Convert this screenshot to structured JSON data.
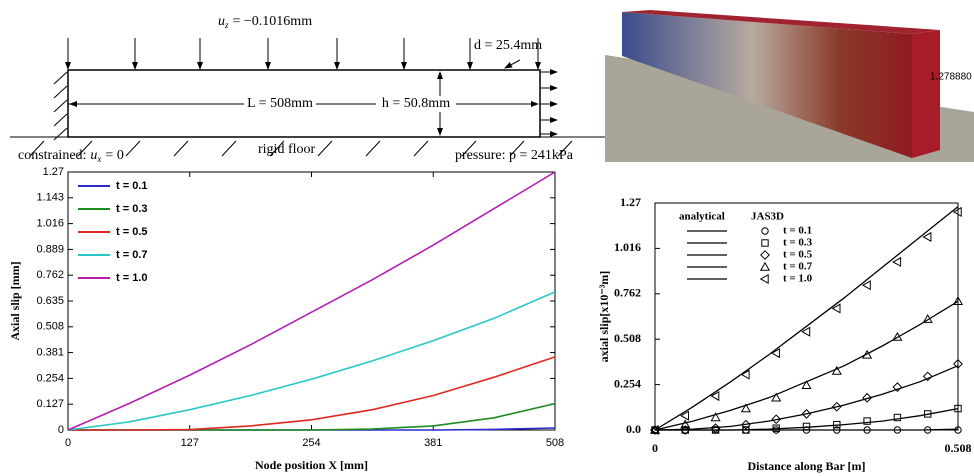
{
  "diagram": {
    "load": {
      "symbol": "u",
      "subscript": "z",
      "text": "= −0.1016mm"
    },
    "depth": "d = 25.4mm",
    "length": "L = 508mm",
    "height": "h = 50.8mm",
    "constraint": {
      "text": "constrained:",
      "symbol": "u",
      "subscript": "x",
      "rest": "= 0"
    },
    "floor": "rigid floor",
    "pressure": "pressure: p = 241kPa"
  },
  "render": {
    "label": "1.278880"
  },
  "chart_data": [
    {
      "type": "line",
      "x_label": "Node position X [mm]",
      "y_label": "Axial slip [mm]",
      "x": [
        0,
        63.5,
        127,
        190.5,
        254,
        317.5,
        381,
        444.5,
        508
      ],
      "xlim": [
        0,
        508
      ],
      "xticks": [
        0,
        127,
        254,
        381,
        508
      ],
      "ylim": [
        0,
        1.27
      ],
      "yticks": [
        0,
        0.127,
        0.254,
        0.381,
        0.508,
        0.635,
        0.762,
        0.889,
        1.016,
        1.143,
        1.27
      ],
      "legend": "upper left",
      "series": [
        {
          "name": "t = 0.1",
          "color": "#2b2bd0",
          "values": [
            0,
            0,
            0,
            0,
            0,
            0,
            0,
            0.003,
            0.01
          ]
        },
        {
          "name": "t = 0.3",
          "color": "#1e8c1e",
          "values": [
            0,
            0,
            0,
            0,
            0,
            0.005,
            0.02,
            0.06,
            0.13
          ]
        },
        {
          "name": "t = 0.5",
          "color": "#e0281e",
          "values": [
            0,
            0,
            0.002,
            0.02,
            0.05,
            0.1,
            0.17,
            0.26,
            0.36
          ]
        },
        {
          "name": "t = 0.7",
          "color": "#28c8c8",
          "values": [
            0,
            0.04,
            0.1,
            0.17,
            0.25,
            0.34,
            0.44,
            0.55,
            0.68
          ]
        },
        {
          "name": "t = 1.0",
          "color": "#b41eb4",
          "values": [
            0,
            0.13,
            0.27,
            0.42,
            0.58,
            0.74,
            0.91,
            1.09,
            1.27
          ]
        }
      ]
    },
    {
      "type": "line",
      "x_label": "Distance along Bar [m]",
      "y_label": "axial slip[x10⁻³m]",
      "legend_headers": [
        "analytical",
        "JAS3D"
      ],
      "x": [
        0,
        0.0635,
        0.127,
        0.1905,
        0.254,
        0.3175,
        0.381,
        0.4445,
        0.508
      ],
      "jas3d_x": [
        0,
        0.0508,
        0.1016,
        0.1524,
        0.2032,
        0.254,
        0.3048,
        0.3556,
        0.4064,
        0.4572,
        0.508
      ],
      "xlim": [
        0,
        0.508
      ],
      "xticks": [
        0,
        0.508
      ],
      "ylim": [
        0,
        1.27
      ],
      "yticks": [
        {
          "value": 0,
          "label": "0.0"
        },
        0.254,
        0.508,
        0.762,
        1.016,
        1.27
      ],
      "legend": "upper left",
      "series": [
        {
          "name": "t = 0.1",
          "color": "#000000",
          "marker": "circle",
          "values": [
            0,
            0,
            0,
            0,
            0,
            0,
            0,
            0,
            0.005
          ],
          "jas3d_values": [
            0,
            0,
            0,
            0,
            0,
            0,
            0,
            0,
            0,
            0,
            0
          ]
        },
        {
          "name": "t = 0.3",
          "color": "#000000",
          "marker": "square",
          "values": [
            0,
            0,
            0,
            0.005,
            0.015,
            0.03,
            0.05,
            0.08,
            0.12
          ],
          "jas3d_values": [
            0,
            0,
            0,
            0,
            0.01,
            0.02,
            0.03,
            0.05,
            0.07,
            0.09,
            0.12
          ]
        },
        {
          "name": "t = 0.5",
          "color": "#000000",
          "marker": "diamond",
          "values": [
            0,
            0.005,
            0.02,
            0.05,
            0.09,
            0.14,
            0.2,
            0.27,
            0.36
          ],
          "jas3d_values": [
            0,
            0,
            0.01,
            0.03,
            0.06,
            0.09,
            0.13,
            0.18,
            0.24,
            0.3,
            0.37
          ]
        },
        {
          "name": "t = 0.7",
          "color": "#000000",
          "marker": "triangle-up",
          "values": [
            0,
            0.05,
            0.11,
            0.18,
            0.27,
            0.36,
            0.47,
            0.59,
            0.72
          ],
          "jas3d_values": [
            0,
            0.03,
            0.07,
            0.12,
            0.18,
            0.25,
            0.33,
            0.42,
            0.52,
            0.62,
            0.72
          ]
        },
        {
          "name": "t = 1.0",
          "color": "#000000",
          "marker": "triangle-left",
          "values": [
            0,
            0.13,
            0.27,
            0.42,
            0.58,
            0.74,
            0.91,
            1.08,
            1.25
          ],
          "jas3d_values": [
            0,
            0.08,
            0.19,
            0.31,
            0.43,
            0.55,
            0.68,
            0.81,
            0.94,
            1.08,
            1.22
          ]
        }
      ]
    }
  ]
}
